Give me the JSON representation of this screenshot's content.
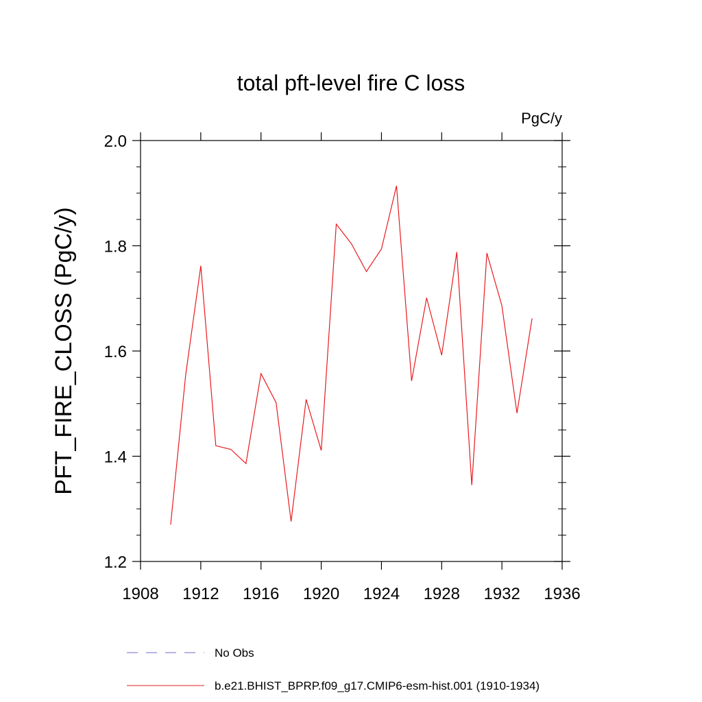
{
  "chart_data": {
    "type": "line",
    "title": "total pft-level fire C loss",
    "units_label": "PgC/y",
    "xlabel": "",
    "ylabel": "PFT_FIRE_CLOSS  (PgC/y)",
    "xlim": [
      1908,
      1936
    ],
    "ylim": [
      1.2,
      2.0
    ],
    "x_ticks": [
      1908,
      1912,
      1916,
      1920,
      1924,
      1928,
      1932,
      1936
    ],
    "y_ticks": [
      1.2,
      1.4,
      1.6,
      1.8,
      2.0
    ],
    "x_tick_labels": [
      "1908",
      "1912",
      "1916",
      "1920",
      "1924",
      "1928",
      "1932",
      "1936"
    ],
    "y_tick_labels": [
      "1.2",
      "1.4",
      "1.6",
      "1.8",
      "2.0"
    ],
    "grid": false,
    "series": [
      {
        "name": "b.e21.BHIST_BPRP.f09_g17.CMIP6-esm-hist.001 (1910-1934)",
        "color": "#e8191e",
        "style": "solid",
        "x": [
          1910,
          1911,
          1912,
          1913,
          1914,
          1915,
          1916,
          1917,
          1918,
          1919,
          1920,
          1921,
          1922,
          1923,
          1924,
          1925,
          1926,
          1927,
          1928,
          1929,
          1930,
          1931,
          1932,
          1933,
          1934
        ],
        "values": [
          1.27,
          1.555,
          1.762,
          1.42,
          1.413,
          1.386,
          1.557,
          1.502,
          1.276,
          1.508,
          1.411,
          1.841,
          1.804,
          1.751,
          1.794,
          1.914,
          1.543,
          1.701,
          1.592,
          1.788,
          1.345,
          1.786,
          1.686,
          1.482,
          1.662
        ]
      }
    ],
    "legend": [
      {
        "label": "No Obs",
        "color": "#6a6ad0",
        "style": "dashed"
      },
      {
        "label": "b.e21.BHIST_BPRP.f09_g17.CMIP6-esm-hist.001 (1910-1934)",
        "color": "#e8191e",
        "style": "solid"
      }
    ],
    "legend_position": "bottom"
  }
}
